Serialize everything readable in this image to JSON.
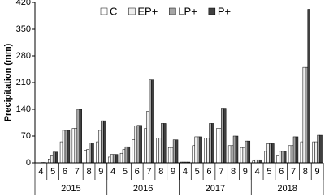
{
  "chart_data": {
    "type": "bar",
    "y_label": "Precipitation (mm)",
    "categories": [
      "4",
      "5",
      "6",
      "7",
      "8",
      "9",
      "4",
      "5",
      "6",
      "7",
      "8",
      "9",
      "4",
      "5",
      "6",
      "7",
      "8",
      "9",
      "4",
      "5",
      "6",
      "7",
      "8",
      "9"
    ],
    "groups": [
      "2015",
      "2016",
      "2017",
      "2018"
    ],
    "series": [
      {
        "name": "C",
        "color": "#ffffff",
        "values": [
          0,
          10,
          55,
          90,
          33,
          55,
          15,
          25,
          60,
          90,
          65,
          40,
          2,
          45,
          65,
          90,
          45,
          40,
          5,
          30,
          20,
          45,
          55,
          55
        ]
      },
      {
        "name": "EP+",
        "color": "#eeeeee",
        "values": [
          0,
          20,
          85,
          90,
          35,
          85,
          22,
          35,
          97,
          135,
          65,
          40,
          2,
          68,
          65,
          90,
          45,
          40,
          8,
          50,
          30,
          45,
          250,
          55
        ]
      },
      {
        "name": "LP+",
        "color": "#a6a6a6",
        "values": [
          1,
          28,
          85,
          140,
          52,
          110,
          22,
          42,
          98,
          217,
          103,
          60,
          2,
          68,
          103,
          143,
          70,
          57,
          8,
          50,
          30,
          68,
          250,
          72
        ]
      },
      {
        "name": "P+",
        "color": "#404040",
        "values": [
          1,
          28,
          85,
          140,
          52,
          110,
          22,
          42,
          98,
          217,
          103,
          60,
          2,
          68,
          103,
          143,
          70,
          57,
          8,
          50,
          30,
          68,
          402,
          72
        ]
      }
    ],
    "ylim": [
      0,
      420
    ],
    "yticks": [
      0,
      70,
      140,
      210,
      280,
      350,
      420
    ],
    "legend": "top-left"
  }
}
